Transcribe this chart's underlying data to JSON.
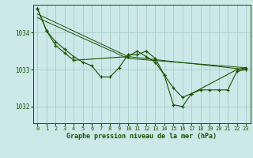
{
  "title": "Graphe pression niveau de la mer (hPa)",
  "bg_color": "#cce8e8",
  "grid_color": "#aacccc",
  "line_color": "#1a5200",
  "marker_color": "#1a5200",
  "xlabel_color": "#1a5200",
  "xlim": [
    -0.5,
    23.5
  ],
  "ylim": [
    1031.55,
    1034.75
  ],
  "yticks": [
    1032,
    1033,
    1034
  ],
  "xticks": [
    0,
    1,
    2,
    3,
    4,
    5,
    6,
    7,
    8,
    9,
    10,
    11,
    12,
    13,
    14,
    15,
    16,
    17,
    18,
    19,
    20,
    21,
    22,
    23
  ],
  "series1": [
    1034.65,
    1034.05,
    1033.75,
    1033.55,
    1033.35,
    1033.2,
    1033.1,
    1032.8,
    1032.8,
    1033.05,
    1033.4,
    1033.4,
    1033.5,
    1033.3,
    1032.85,
    1032.05,
    1032.0,
    1032.35,
    1032.45,
    1032.45,
    1032.45,
    1032.45,
    1032.95,
    1033.0
  ],
  "series2_x": [
    0,
    1,
    2,
    3,
    4,
    10,
    11,
    12,
    13,
    14,
    15,
    16,
    17,
    22,
    23
  ],
  "series2_y": [
    1034.65,
    1034.05,
    1033.65,
    1033.45,
    1033.25,
    1033.35,
    1033.5,
    1033.35,
    1033.2,
    1032.85,
    1032.5,
    1032.25,
    1032.35,
    1033.0,
    1033.05
  ],
  "series3_x": [
    0,
    10,
    23
  ],
  "series3_y": [
    1034.5,
    1033.35,
    1033.0
  ],
  "series4_x": [
    0,
    10,
    23
  ],
  "series4_y": [
    1034.4,
    1033.3,
    1033.05
  ]
}
